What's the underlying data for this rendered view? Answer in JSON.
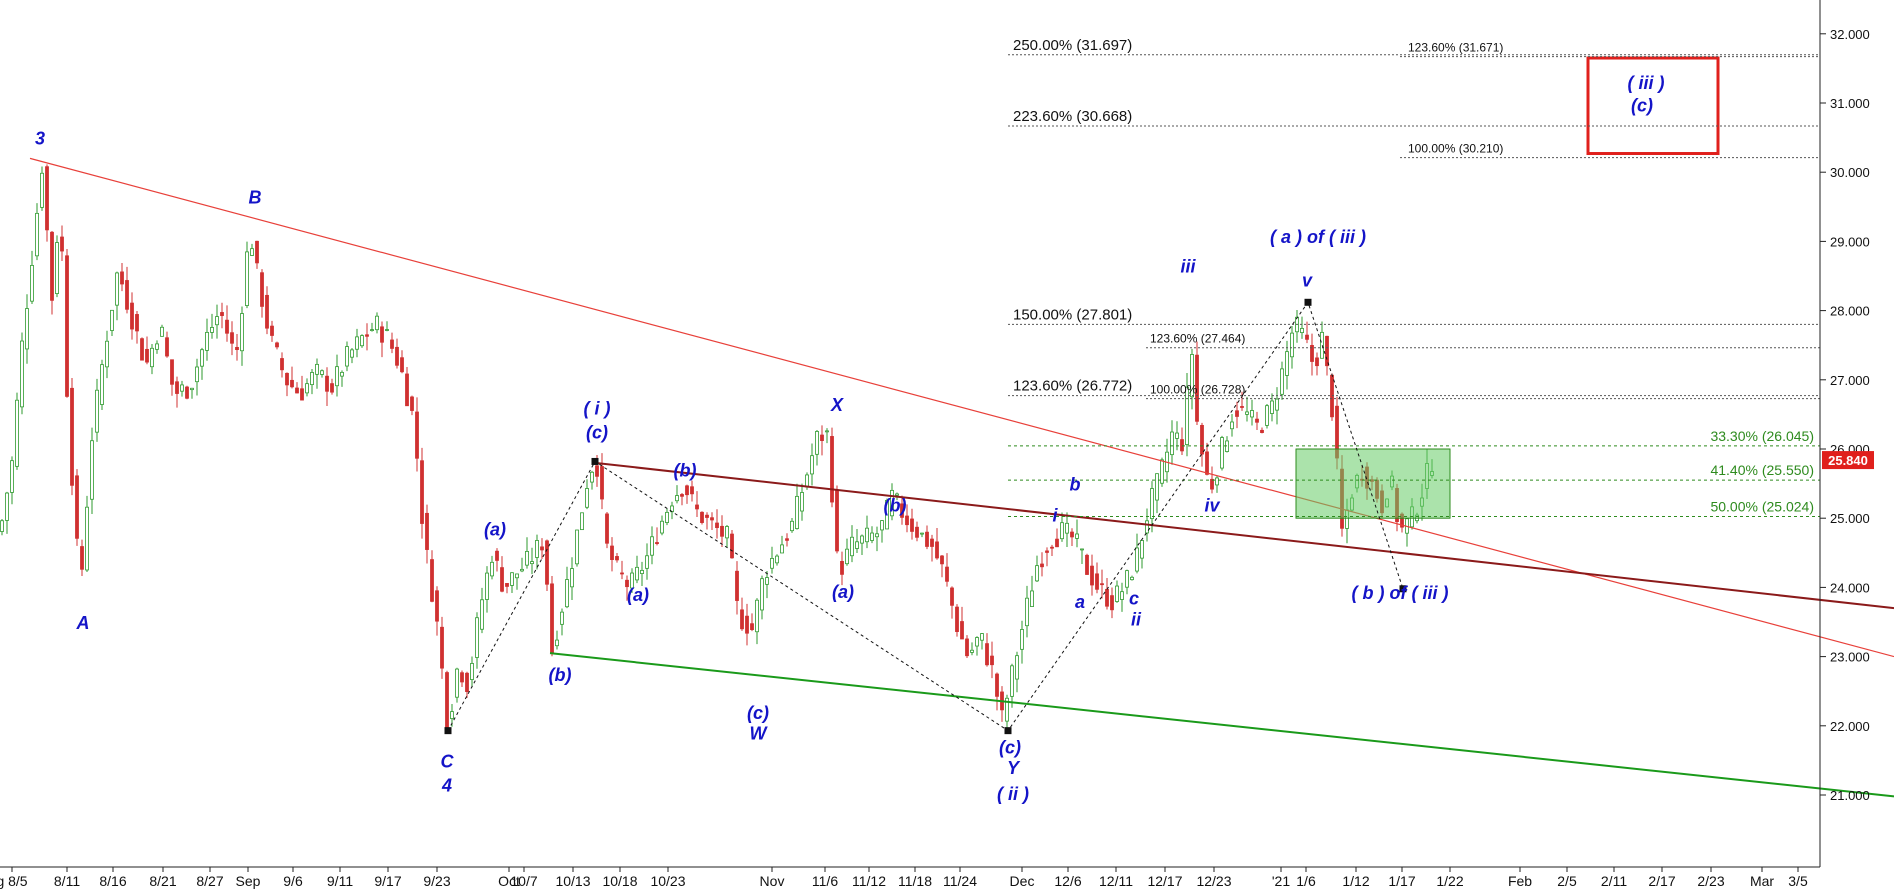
{
  "chart_data": {
    "type": "candlestick",
    "title": "",
    "y_axis": {
      "ylim": [
        20.0,
        32.45
      ],
      "ticks": [
        "21.000",
        "22.000",
        "23.000",
        "24.000",
        "25.000",
        "26.000",
        "27.000",
        "28.000",
        "29.000",
        "30.000",
        "31.000",
        "32.000"
      ],
      "position": "right"
    },
    "x_axis": {
      "ticks": [
        "g 8/5",
        "8/11",
        "8/16",
        "8/21",
        "8/27",
        "Sep",
        "9/6",
        "9/11",
        "9/17",
        "9/23",
        "Oct",
        "10/7",
        "10/13",
        "10/18",
        "10/23",
        "Nov",
        "11/6",
        "11/12",
        "11/18",
        "11/24",
        "Dec",
        "12/6",
        "12/11",
        "12/17",
        "12/23",
        "'21",
        "1/6",
        "1/12",
        "1/17",
        "1/22",
        "Feb",
        "2/5",
        "2/11",
        "2/17",
        "2/23",
        "Mar",
        "3/5"
      ],
      "position": "bottom"
    },
    "grid": false,
    "last_price": {
      "label": "25.840",
      "value": 25.84,
      "color": "#e0201c"
    },
    "price_path": [
      [
        0,
        24.8
      ],
      [
        12,
        25.8
      ],
      [
        22,
        27.5
      ],
      [
        36,
        29.3
      ],
      [
        42,
        30.1
      ],
      [
        52,
        28.2
      ],
      [
        60,
        29.6
      ],
      [
        68,
        26.5
      ],
      [
        80,
        23.9
      ],
      [
        92,
        26.2
      ],
      [
        104,
        27.4
      ],
      [
        118,
        28.6
      ],
      [
        132,
        27.9
      ],
      [
        146,
        27.2
      ],
      [
        160,
        27.8
      ],
      [
        174,
        26.8
      ],
      [
        190,
        26.9
      ],
      [
        206,
        27.6
      ],
      [
        220,
        28.0
      ],
      [
        236,
        27.3
      ],
      [
        250,
        29.2
      ],
      [
        256,
        28.6
      ],
      [
        270,
        27.6
      ],
      [
        286,
        27.0
      ],
      [
        300,
        26.8
      ],
      [
        316,
        27.1
      ],
      [
        332,
        26.9
      ],
      [
        346,
        27.3
      ],
      [
        362,
        27.6
      ],
      [
        376,
        27.8
      ],
      [
        388,
        27.6
      ],
      [
        400,
        27.2
      ],
      [
        414,
        26.4
      ],
      [
        424,
        24.7
      ],
      [
        436,
        23.6
      ],
      [
        448,
        22.0
      ],
      [
        458,
        22.9
      ],
      [
        468,
        22.6
      ],
      [
        480,
        23.7
      ],
      [
        492,
        24.5
      ],
      [
        504,
        24.0
      ],
      [
        516,
        24.2
      ],
      [
        530,
        24.4
      ],
      [
        544,
        24.7
      ],
      [
        552,
        23.1
      ],
      [
        560,
        23.6
      ],
      [
        572,
        24.4
      ],
      [
        588,
        25.6
      ],
      [
        596,
        25.9
      ],
      [
        606,
        24.6
      ],
      [
        618,
        24.2
      ],
      [
        630,
        24.0
      ],
      [
        646,
        24.4
      ],
      [
        660,
        24.9
      ],
      [
        672,
        25.3
      ],
      [
        684,
        25.5
      ],
      [
        696,
        25.1
      ],
      [
        712,
        24.9
      ],
      [
        728,
        24.7
      ],
      [
        738,
        23.6
      ],
      [
        752,
        23.4
      ],
      [
        764,
        24.2
      ],
      [
        776,
        24.5
      ],
      [
        792,
        24.9
      ],
      [
        806,
        25.6
      ],
      [
        818,
        26.2
      ],
      [
        828,
        26.2
      ],
      [
        838,
        24.2
      ],
      [
        852,
        24.6
      ],
      [
        866,
        24.7
      ],
      [
        880,
        24.8
      ],
      [
        892,
        25.3
      ],
      [
        906,
        25.0
      ],
      [
        918,
        24.8
      ],
      [
        932,
        24.6
      ],
      [
        944,
        24.2
      ],
      [
        956,
        23.5
      ],
      [
        968,
        23.0
      ],
      [
        980,
        23.3
      ],
      [
        992,
        22.8
      ],
      [
        1002,
        22.1
      ],
      [
        1010,
        22.6
      ],
      [
        1022,
        23.4
      ],
      [
        1036,
        24.3
      ],
      [
        1050,
        24.7
      ],
      [
        1062,
        24.8
      ],
      [
        1074,
        24.7
      ],
      [
        1086,
        24.3
      ],
      [
        1098,
        24.0
      ],
      [
        1112,
        23.8
      ],
      [
        1124,
        24.0
      ],
      [
        1136,
        24.4
      ],
      [
        1148,
        25.1
      ],
      [
        1160,
        25.6
      ],
      [
        1172,
        26.2
      ],
      [
        1182,
        26.1
      ],
      [
        1192,
        27.4
      ],
      [
        1198,
        26.2
      ],
      [
        1210,
        25.4
      ],
      [
        1222,
        26.0
      ],
      [
        1234,
        26.6
      ],
      [
        1246,
        26.5
      ],
      [
        1258,
        26.3
      ],
      [
        1272,
        26.6
      ],
      [
        1284,
        27.2
      ],
      [
        1294,
        27.8
      ],
      [
        1304,
        27.6
      ],
      [
        1314,
        27.2
      ],
      [
        1322,
        27.6
      ],
      [
        1332,
        26.6
      ],
      [
        1342,
        24.8
      ],
      [
        1352,
        25.4
      ],
      [
        1362,
        25.7
      ],
      [
        1372,
        25.5
      ],
      [
        1382,
        25.2
      ],
      [
        1390,
        25.6
      ],
      [
        1400,
        24.8
      ],
      [
        1412,
        25.0
      ],
      [
        1422,
        25.4
      ],
      [
        1432,
        25.84
      ]
    ],
    "trendlines": [
      {
        "from": [
          30,
          30.2
        ],
        "to": [
          1894,
          23.0
        ],
        "color": "#e8403a"
      },
      {
        "from": [
          595,
          25.8
        ],
        "to": [
          1894,
          23.7
        ],
        "color": "#8b1a1a"
      },
      {
        "from": [
          550,
          23.05
        ],
        "to": [
          1894,
          20.98
        ],
        "color": "#1a9a1a"
      }
    ],
    "wave_paths": [
      [
        [
          448,
          21.93
        ],
        [
          595,
          25.82
        ],
        [
          1008,
          21.93
        ],
        [
          1308,
          28.12
        ],
        [
          1403,
          23.98
        ]
      ]
    ],
    "fib_levels": [
      {
        "label": "250.00% (31.697)",
        "value": 31.697,
        "side": "left",
        "style": "gray"
      },
      {
        "label": "223.60% (30.668)",
        "value": 30.668,
        "side": "left",
        "style": "gray"
      },
      {
        "label": "150.00% (27.801)",
        "value": 27.801,
        "side": "left",
        "style": "gray"
      },
      {
        "label": "123.60% (26.772)",
        "value": 26.772,
        "side": "left",
        "style": "gray"
      },
      {
        "label": "123.60% (31.671)",
        "value": 31.671,
        "side": "small-right",
        "style": "gray"
      },
      {
        "label": "100.00% (30.210)",
        "value": 30.21,
        "side": "small-right",
        "style": "gray"
      },
      {
        "label": "123.60% (27.464)",
        "value": 27.464,
        "side": "small-left",
        "style": "gray"
      },
      {
        "label": "100.00% (26.728)",
        "value": 26.728,
        "side": "small-left",
        "style": "gray"
      },
      {
        "label": "33.30% (26.045)",
        "value": 26.045,
        "side": "right",
        "style": "green"
      },
      {
        "label": "41.40% (25.550)",
        "value": 25.55,
        "side": "right",
        "style": "green"
      },
      {
        "label": "50.00% (25.024)",
        "value": 25.024,
        "side": "right",
        "style": "green"
      }
    ],
    "target_box": {
      "y_top": 31.65,
      "y_bottom": 30.27,
      "color": "#e0201c"
    },
    "support_box": {
      "y_top": 26.0,
      "y_bottom": 25.0,
      "color": "#66cc66"
    },
    "wave_labels": [
      {
        "text": "3",
        "at": [
          40,
          30.4
        ]
      },
      {
        "text": "A",
        "at": [
          83,
          23.4
        ]
      },
      {
        "text": "B",
        "at": [
          255,
          29.55
        ]
      },
      {
        "text": "C",
        "at": [
          447,
          21.4
        ]
      },
      {
        "text": "4",
        "at": [
          447,
          21.05
        ]
      },
      {
        "text": "(a)",
        "at": [
          495,
          24.75
        ]
      },
      {
        "text": "(b)",
        "at": [
          560,
          22.65
        ]
      },
      {
        "text": "( i )",
        "at": [
          597,
          26.5
        ]
      },
      {
        "text": "(c)",
        "at": [
          597,
          26.15
        ]
      },
      {
        "text": "(b)",
        "at": [
          685,
          25.6
        ]
      },
      {
        "text": "(a)",
        "at": [
          638,
          23.8
        ]
      },
      {
        "text": "(c)",
        "at": [
          758,
          22.1
        ]
      },
      {
        "text": "W",
        "at": [
          758,
          21.8
        ]
      },
      {
        "text": "X",
        "at": [
          837,
          26.55
        ]
      },
      {
        "text": "(a)",
        "at": [
          843,
          23.85
        ]
      },
      {
        "text": "(b)",
        "at": [
          895,
          25.1
        ]
      },
      {
        "text": "(c)",
        "at": [
          1010,
          21.6
        ]
      },
      {
        "text": "Y",
        "at": [
          1013,
          21.3
        ]
      },
      {
        "text": "( ii )",
        "at": [
          1013,
          20.93
        ]
      },
      {
        "text": "b",
        "at": [
          1075,
          25.4
        ]
      },
      {
        "text": "i",
        "at": [
          1055,
          24.95
        ]
      },
      {
        "text": "a",
        "at": [
          1080,
          23.7
        ]
      },
      {
        "text": "c",
        "at": [
          1134,
          23.75
        ]
      },
      {
        "text": "ii",
        "at": [
          1136,
          23.45
        ]
      },
      {
        "text": "iii",
        "at": [
          1188,
          28.55
        ]
      },
      {
        "text": "iv",
        "at": [
          1212,
          25.1
        ]
      },
      {
        "text": "( a )  of ( iii )",
        "at": [
          1318,
          28.98
        ]
      },
      {
        "text": "v",
        "at": [
          1307,
          28.35
        ]
      },
      {
        "text": "( b )  of ( iii )",
        "at": [
          1400,
          23.83
        ]
      },
      {
        "text": "( iii )",
        "at": [
          1646,
          31.2
        ]
      },
      {
        "text": "(c)",
        "at": [
          1642,
          30.88
        ]
      }
    ]
  }
}
